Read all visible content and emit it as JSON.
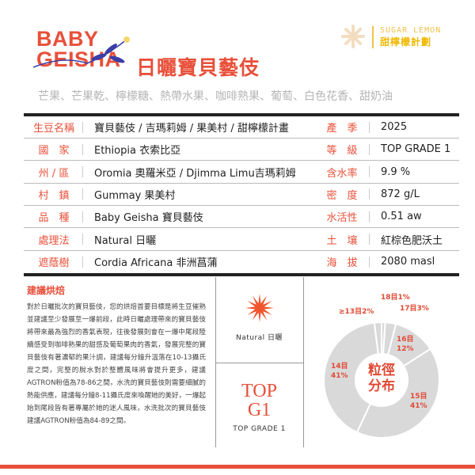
{
  "header": {
    "logo_en_line1": "BABY",
    "logo_en_line2": "GEISHA",
    "title_zh": "日曬寶貝藝伎",
    "brand_en": "SUGAR LEMON",
    "brand_zh": "甜檸檬計劃"
  },
  "flavor_notes": "芒果、芒果乾、檸檬糖、熱帶水果、咖啡熟果、葡萄、白色花香、甜奶油",
  "specs": [
    {
      "label": "生豆名稱",
      "value": "寶貝藝伎 / 吉瑪莉姆 / 果美村 / 甜檸檬計畫",
      "label2": "產　季",
      "value2": "2025"
    },
    {
      "label": "國　家",
      "value": "Ethiopia 衣索比亞",
      "label2": "等　級",
      "value2": "TOP GRADE 1"
    },
    {
      "label": "州 / 區",
      "value": "Oromia 奧羅米亞 / Djimma Limu吉瑪莉姆",
      "label2": "含水率",
      "value2": "9.9 %"
    },
    {
      "label": "村　鎮",
      "value": "Gummay 果美村",
      "label2": "密　度",
      "value2": "872 g/L"
    },
    {
      "label": "品　種",
      "value": "Baby Geisha 寶貝藝伎",
      "label2": "水活性",
      "value2": "0.51 aw"
    },
    {
      "label": "處理法",
      "value": "Natural 日曬",
      "label2": "土　壤",
      "value2": "紅棕色肥沃土"
    },
    {
      "label": "遮蔭樹",
      "value": "Cordia Africana 非洲菖蒲",
      "label2": "海　拔",
      "value2": "2080 masl"
    }
  ],
  "advice": {
    "title": "建議烘焙",
    "text": "對於日曬批次的寶貝藝伎，您的烘焙首要目標是將生豆催熟並建議至少發展至一爆前段，此時日曬處理帶來的寶貝藝伎將帶來最為強烈的香氣表現，往後發展則會在一爆中尾段陸續感受到咖啡熟果的甜感及葡萄果肉的香氣，發展完整的寶貝藝伎有著濃郁的果汁調，建議每分鐘升溫落在10-13攝氏度之間，完整的脫水對於整體風味將會提升更多，建議AGTRON粉值為78-86之間，水洗的寶貝藝伎則需要細膩的熱能供應，建議每分鐘8-11攝氏度來喚醒她的美好，一爆起始到尾段皆有著專屬於她的迷人風味，水洗批次的寶貝藝伎建議AGTRON粉值為84-89之間。"
  },
  "badges": {
    "process_label": "Natural 日曬",
    "grade_big_line1": "TOP",
    "grade_big_line2": "G1",
    "grade_label": "TOP GRADE 1",
    "burst_icon": "sun-burst-icon"
  },
  "colors": {
    "accent": "#e8503a",
    "brand": "#f0b800",
    "slice": "#d9d9d9"
  },
  "chart_data": {
    "type": "pie",
    "donut": true,
    "center_label_line1": "粒徑",
    "center_label_line2": "分布",
    "categories": [
      "18目",
      "17目",
      "16目",
      "15目",
      "14目",
      "≥13目"
    ],
    "values": [
      1,
      3,
      12,
      41,
      41,
      2
    ],
    "labels": [
      "18目1%",
      "17目3%",
      "16目12%",
      "15目41%",
      "14目41%",
      "≥13目2%"
    ],
    "label_lines": [
      [
        "18目1%"
      ],
      [
        "17目3%"
      ],
      [
        "16目",
        "12%"
      ],
      [
        "15目",
        "41%"
      ],
      [
        "14目",
        "41%"
      ],
      [
        "≥13目2%"
      ]
    ]
  }
}
